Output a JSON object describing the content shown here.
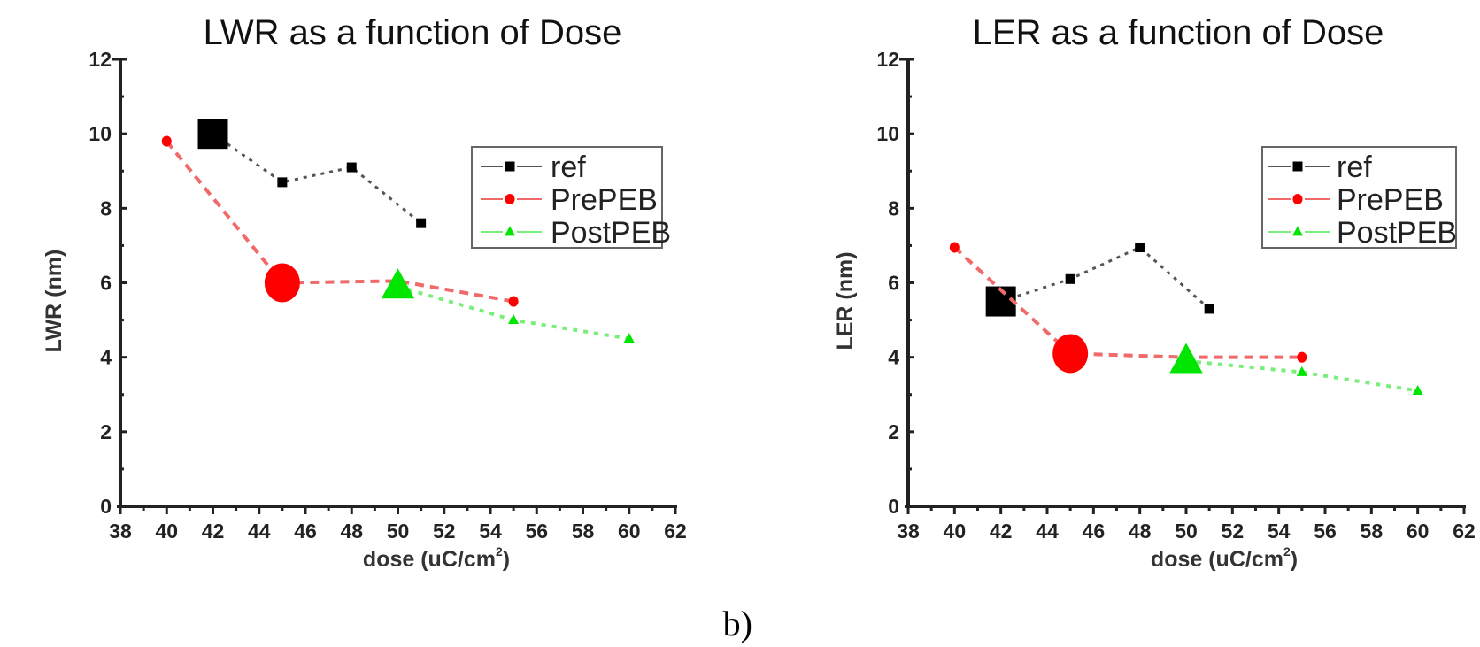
{
  "caption": "b)",
  "chart_data": [
    {
      "type": "line",
      "title": "LWR as a function of Dose",
      "xlabel": "dose (uC/cm²)",
      "xlabel_base": "dose (uC/cm",
      "xlabel_sup": "2",
      "xlabel_end": ")",
      "ylabel": "LWR (nm)",
      "xlim": [
        38,
        62
      ],
      "ylim": [
        0,
        12
      ],
      "xticks": [
        38,
        40,
        42,
        44,
        46,
        48,
        50,
        52,
        54,
        56,
        58,
        60,
        62
      ],
      "yticks": [
        0,
        2,
        4,
        6,
        8,
        10,
        12
      ],
      "grid": false,
      "legend_position": "top-right",
      "series": [
        {
          "name": "ref",
          "marker": "square",
          "color": "#000000",
          "line_color": "#555555",
          "x": [
            42,
            45,
            48,
            51
          ],
          "y": [
            10.0,
            8.7,
            9.1,
            7.6
          ],
          "large_marker_x": [
            42
          ]
        },
        {
          "name": "PrePEB",
          "marker": "circle",
          "color": "#ff0000",
          "line_color": "#f06a6a",
          "x": [
            40,
            45,
            50,
            55
          ],
          "y": [
            9.8,
            6.0,
            6.05,
            5.5
          ],
          "large_marker_x": [
            45
          ]
        },
        {
          "name": "PostPEB",
          "marker": "triangle",
          "color": "#00e600",
          "line_color": "#7aee7a",
          "x": [
            50,
            55,
            60
          ],
          "y": [
            5.9,
            5.0,
            4.5
          ],
          "large_marker_x": [
            50
          ]
        }
      ]
    },
    {
      "type": "line",
      "title": "LER as a function of Dose",
      "xlabel": "dose (uC/cm²)",
      "xlabel_base": "dose (uC/cm",
      "xlabel_sup": "2",
      "xlabel_end": ")",
      "ylabel": "LER (nm)",
      "xlim": [
        38,
        62
      ],
      "ylim": [
        0,
        12
      ],
      "xticks": [
        38,
        40,
        42,
        44,
        46,
        48,
        50,
        52,
        54,
        56,
        58,
        60,
        62
      ],
      "yticks": [
        0,
        2,
        4,
        6,
        8,
        10,
        12
      ],
      "grid": false,
      "legend_position": "top-right",
      "series": [
        {
          "name": "ref",
          "marker": "square",
          "color": "#000000",
          "line_color": "#555555",
          "x": [
            42,
            45,
            48,
            51
          ],
          "y": [
            5.5,
            6.1,
            6.95,
            5.3
          ],
          "large_marker_x": [
            42
          ]
        },
        {
          "name": "PrePEB",
          "marker": "circle",
          "color": "#ff0000",
          "line_color": "#f06a6a",
          "x": [
            40,
            45,
            50,
            55
          ],
          "y": [
            6.95,
            4.1,
            4.0,
            4.0
          ],
          "large_marker_x": [
            45
          ]
        },
        {
          "name": "PostPEB",
          "marker": "triangle",
          "color": "#00e600",
          "line_color": "#7aee7a",
          "x": [
            50,
            55,
            60
          ],
          "y": [
            3.9,
            3.6,
            3.1
          ],
          "large_marker_x": [
            50
          ]
        }
      ]
    }
  ]
}
